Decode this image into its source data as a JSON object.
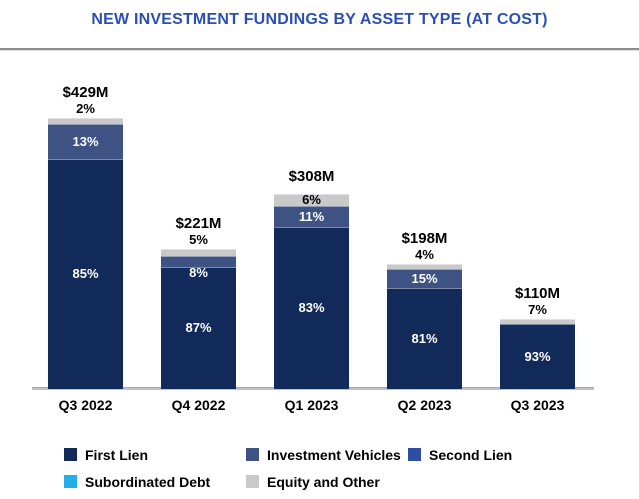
{
  "title": "NEW INVESTMENT FUNDINGS BY ASSET TYPE (AT COST)",
  "colors": {
    "title": "#2a50b8",
    "first_lien": "#122a5a",
    "investment_vehicles": "#3e5384",
    "second_lien": "#2e4ea4",
    "subordinated_debt": "#21aeea",
    "equity_and_other": "#c9c9c9",
    "axis_line": "#c2c2c2",
    "label_dark": "#000000",
    "label_light": "#ffffff"
  },
  "chart_data": {
    "type": "bar",
    "stacked": true,
    "title": "NEW INVESTMENT FUNDINGS BY ASSET TYPE (AT COST)",
    "categories": [
      "Q3 2022",
      "Q4 2022",
      "Q1 2023",
      "Q2 2023",
      "Q3 2023"
    ],
    "totals_label": [
      "$429M",
      "$221M",
      "$308M",
      "$198M",
      "$110M"
    ],
    "totals_musd": [
      429,
      221,
      308,
      198,
      110
    ],
    "series": [
      {
        "name": "First Lien",
        "color": "#122a5a",
        "values_pct": [
          85,
          87,
          83,
          81,
          93
        ]
      },
      {
        "name": "Investment Vehicles",
        "color": "#3e5384",
        "values_pct": [
          13,
          8,
          11,
          15,
          0
        ]
      },
      {
        "name": "Second Lien",
        "color": "#2e4ea4",
        "values_pct": [
          0,
          0,
          0,
          0,
          0
        ]
      },
      {
        "name": "Subordinated Debt",
        "color": "#21aeea",
        "values_pct": [
          0,
          0,
          0,
          0,
          0
        ]
      },
      {
        "name": "Equity and Other",
        "color": "#c9c9c9",
        "values_pct": [
          2,
          5,
          6,
          4,
          7
        ]
      }
    ],
    "xlabel": "",
    "ylabel": "",
    "grid": false,
    "legend_position": "bottom"
  }
}
